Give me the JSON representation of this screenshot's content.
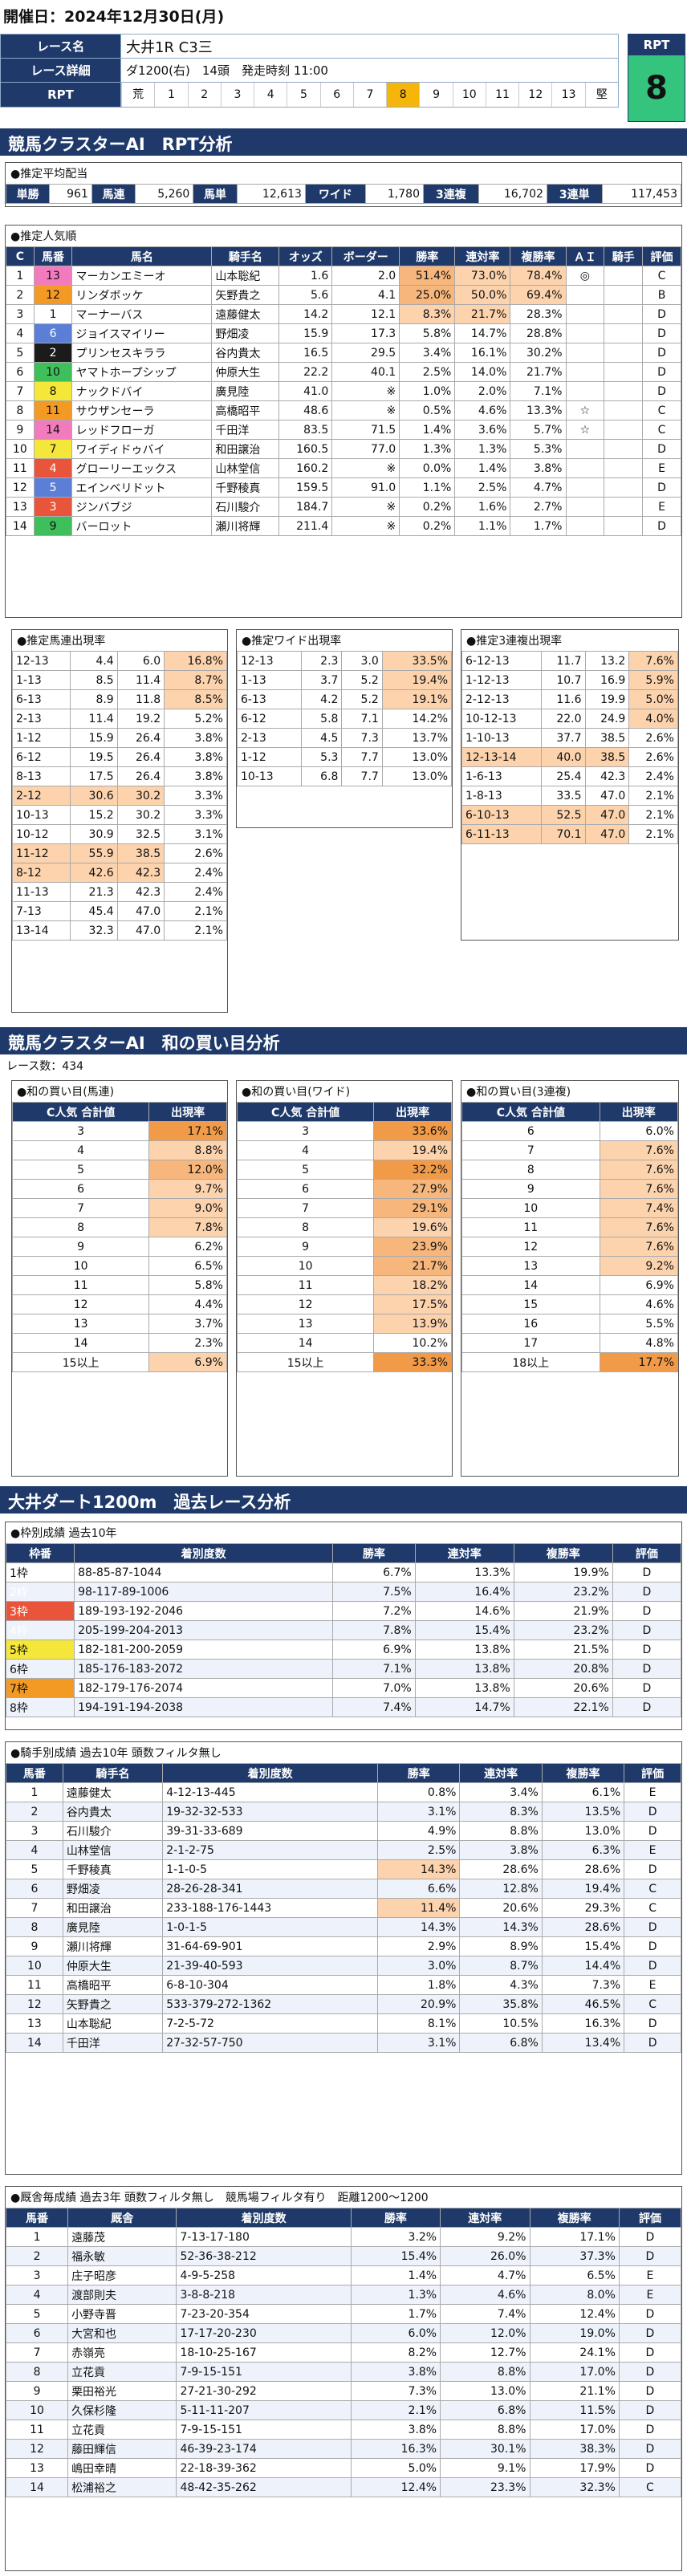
{
  "date": "開催日：2024年12月30日(月)",
  "header": {
    "race_name_label": "レース名",
    "race_name": "大井1R C3三",
    "race_detail_label": "レース詳細",
    "race_detail": "ダ1200(右)　14頭　発走時刻 11:00",
    "rpt_label": "RPT",
    "rpt_scale": [
      "荒",
      "1",
      "2",
      "3",
      "4",
      "5",
      "6",
      "7",
      "8",
      "9",
      "10",
      "11",
      "12",
      "13",
      "堅"
    ],
    "rpt_title": "RPT",
    "rpt_value": "8"
  },
  "band1": "競馬クラスターAI　RPT分析",
  "payout_title": "●推定平均配当",
  "payout": [
    [
      "単勝",
      "961"
    ],
    [
      "馬連",
      "5,260"
    ],
    [
      "馬単",
      "12,613"
    ],
    [
      "ワイド",
      "1,780"
    ],
    [
      "3連複",
      "16,702"
    ],
    [
      "3連単",
      "117,453"
    ]
  ],
  "pop_title": "●推定人気順",
  "pop_headers": [
    "C",
    "馬番",
    "馬名",
    "騎手名",
    "オッズ",
    "ボーダー",
    "勝率",
    "連対率",
    "複勝率",
    "ＡＩ",
    "騎手",
    "評価"
  ],
  "pop_rows": [
    [
      "1",
      "13",
      "マーカンエミーオ",
      "山本聡紀",
      "1.6",
      "2.0",
      "51.4%",
      "73.0%",
      "78.4%",
      "◎",
      "",
      "C"
    ],
    [
      "2",
      "12",
      "リンダボッケ",
      "矢野貴之",
      "5.6",
      "4.1",
      "25.0%",
      "50.0%",
      "69.4%",
      "",
      "",
      "B"
    ],
    [
      "3",
      "1",
      "マーナーバス",
      "遠藤健太",
      "14.2",
      "12.1",
      "8.3%",
      "21.7%",
      "28.3%",
      "",
      "",
      "D"
    ],
    [
      "4",
      "6",
      "ジョイスマイリー",
      "野畑凌",
      "15.9",
      "17.3",
      "5.8%",
      "14.7%",
      "28.8%",
      "",
      "",
      "D"
    ],
    [
      "5",
      "2",
      "プリンセスキララ",
      "谷内貴太",
      "16.5",
      "29.5",
      "3.4%",
      "16.1%",
      "30.2%",
      "",
      "",
      "D"
    ],
    [
      "6",
      "10",
      "ヤマトホープシップ",
      "仲原大生",
      "22.2",
      "40.1",
      "2.5%",
      "14.0%",
      "21.7%",
      "",
      "",
      "D"
    ],
    [
      "7",
      "8",
      "ナックドバイ",
      "廣見陸",
      "41.0",
      "※",
      "1.0%",
      "2.0%",
      "7.1%",
      "",
      "",
      "D"
    ],
    [
      "8",
      "11",
      "サウザンセーラ",
      "高橋昭平",
      "48.6",
      "※",
      "0.5%",
      "4.6%",
      "13.3%",
      "☆",
      "",
      "C"
    ],
    [
      "9",
      "14",
      "レッドフローガ",
      "千田洋",
      "83.5",
      "71.5",
      "1.4%",
      "3.6%",
      "5.7%",
      "☆",
      "",
      "C"
    ],
    [
      "10",
      "7",
      "ワイディドゥバイ",
      "和田譲治",
      "160.5",
      "77.0",
      "1.3%",
      "1.3%",
      "5.3%",
      "",
      "",
      "D"
    ],
    [
      "11",
      "4",
      "グローリーエックス",
      "山林堂信",
      "160.2",
      "※",
      "0.0%",
      "1.4%",
      "3.8%",
      "",
      "",
      "E"
    ],
    [
      "12",
      "5",
      "エインベリドット",
      "千野稜真",
      "159.5",
      "91.0",
      "1.1%",
      "2.5%",
      "4.7%",
      "",
      "",
      "D"
    ],
    [
      "13",
      "3",
      "ジンバブジ",
      "石川駿介",
      "184.7",
      "※",
      "0.2%",
      "1.6%",
      "2.7%",
      "",
      "",
      "E"
    ],
    [
      "14",
      "9",
      "バーロット",
      "瀬川将輝",
      "211.4",
      "※",
      "0.2%",
      "1.1%",
      "1.7%",
      "",
      "",
      "D"
    ]
  ],
  "umaren_title": "●推定馬連出現率",
  "umaren": [
    [
      "12-13",
      "4.4",
      "6.0",
      "16.8%"
    ],
    [
      "1-13",
      "8.5",
      "11.4",
      "8.7%"
    ],
    [
      "6-13",
      "8.9",
      "11.8",
      "8.5%"
    ],
    [
      "2-13",
      "11.4",
      "19.2",
      "5.2%"
    ],
    [
      "1-12",
      "15.9",
      "26.4",
      "3.8%"
    ],
    [
      "6-12",
      "19.5",
      "26.4",
      "3.8%"
    ],
    [
      "8-13",
      "17.5",
      "26.4",
      "3.8%"
    ],
    [
      "2-12",
      "30.6",
      "30.2",
      "3.3%"
    ],
    [
      "10-13",
      "15.2",
      "30.2",
      "3.3%"
    ],
    [
      "10-12",
      "30.9",
      "32.5",
      "3.1%"
    ],
    [
      "11-12",
      "55.9",
      "38.5",
      "2.6%"
    ],
    [
      "8-12",
      "42.6",
      "42.3",
      "2.4%"
    ],
    [
      "11-13",
      "21.3",
      "42.3",
      "2.4%"
    ],
    [
      "7-13",
      "45.4",
      "47.0",
      "2.1%"
    ],
    [
      "13-14",
      "32.3",
      "47.0",
      "2.1%"
    ]
  ],
  "wide_title": "●推定ワイド出現率",
  "wide": [
    [
      "12-13",
      "2.3",
      "3.0",
      "33.5%"
    ],
    [
      "1-13",
      "3.7",
      "5.2",
      "19.4%"
    ],
    [
      "6-13",
      "4.2",
      "5.2",
      "19.1%"
    ],
    [
      "6-12",
      "5.8",
      "7.1",
      "14.2%"
    ],
    [
      "2-13",
      "4.5",
      "7.3",
      "13.7%"
    ],
    [
      "1-12",
      "5.3",
      "7.7",
      "13.0%"
    ],
    [
      "10-13",
      "6.8",
      "7.7",
      "13.0%"
    ]
  ],
  "sanren_title": "●推定3連複出現率",
  "sanren": [
    [
      "6-12-13",
      "11.7",
      "13.2",
      "7.6%"
    ],
    [
      "1-12-13",
      "10.7",
      "16.9",
      "5.9%"
    ],
    [
      "2-12-13",
      "11.6",
      "19.9",
      "5.0%"
    ],
    [
      "10-12-13",
      "22.0",
      "24.9",
      "4.0%"
    ],
    [
      "1-10-13",
      "37.7",
      "38.5",
      "2.6%"
    ],
    [
      "12-13-14",
      "40.0",
      "38.5",
      "2.6%"
    ],
    [
      "1-6-13",
      "25.4",
      "42.3",
      "2.4%"
    ],
    [
      "1-8-13",
      "33.5",
      "47.0",
      "2.1%"
    ],
    [
      "6-10-13",
      "52.5",
      "47.0",
      "2.1%"
    ],
    [
      "6-11-13",
      "70.1",
      "47.0",
      "2.1%"
    ]
  ],
  "band2": "競馬クラスターAI　和の買い目分析",
  "race_count": "レース数：434",
  "sum_titles": [
    "●和の買い目(馬連)",
    "●和の買い目(ワイド)",
    "●和の買い目(3連複)"
  ],
  "sum_headers": [
    [
      "C人気",
      "合計値",
      "出現率"
    ]
  ],
  "sum_umaren": [
    [
      "3",
      "17.1%"
    ],
    [
      "4",
      "8.8%"
    ],
    [
      "5",
      "12.0%"
    ],
    [
      "6",
      "9.7%"
    ],
    [
      "7",
      "9.0%"
    ],
    [
      "8",
      "7.8%"
    ],
    [
      "9",
      "6.2%"
    ],
    [
      "10",
      "6.5%"
    ],
    [
      "11",
      "5.8%"
    ],
    [
      "12",
      "4.4%"
    ],
    [
      "13",
      "3.7%"
    ],
    [
      "14",
      "2.3%"
    ],
    [
      "15以上",
      "6.9%"
    ]
  ],
  "sum_wide": [
    [
      "3",
      "33.6%"
    ],
    [
      "4",
      "19.4%"
    ],
    [
      "5",
      "32.2%"
    ],
    [
      "6",
      "27.9%"
    ],
    [
      "7",
      "29.1%"
    ],
    [
      "8",
      "19.6%"
    ],
    [
      "9",
      "23.9%"
    ],
    [
      "10",
      "21.7%"
    ],
    [
      "11",
      "18.2%"
    ],
    [
      "12",
      "17.5%"
    ],
    [
      "13",
      "13.9%"
    ],
    [
      "14",
      "10.2%"
    ],
    [
      "15以上",
      "33.3%"
    ]
  ],
  "sum_sanren": [
    [
      "6",
      "6.0%"
    ],
    [
      "7",
      "7.6%"
    ],
    [
      "8",
      "7.6%"
    ],
    [
      "9",
      "7.6%"
    ],
    [
      "10",
      "7.4%"
    ],
    [
      "11",
      "7.6%"
    ],
    [
      "12",
      "7.6%"
    ],
    [
      "13",
      "9.2%"
    ],
    [
      "14",
      "6.9%"
    ],
    [
      "15",
      "4.6%"
    ],
    [
      "16",
      "5.5%"
    ],
    [
      "17",
      "4.8%"
    ],
    [
      "18以上",
      "17.7%"
    ]
  ],
  "band3": "大井ダート1200m　過去レース分析",
  "waku_title": "●枠別成績 過去10年",
  "waku_headers": [
    "枠番",
    "着別度数",
    "勝率",
    "連対率",
    "複勝率",
    "評価"
  ],
  "waku": [
    [
      "1枠",
      "88-85-87-1044",
      "6.7%",
      "13.3%",
      "19.9%",
      "D"
    ],
    [
      "2枠",
      "98-117-89-1006",
      "7.5%",
      "16.4%",
      "23.2%",
      "D"
    ],
    [
      "3枠",
      "189-193-192-2046",
      "7.2%",
      "14.6%",
      "21.9%",
      "D"
    ],
    [
      "4枠",
      "205-199-204-2013",
      "7.8%",
      "15.4%",
      "23.2%",
      "D"
    ],
    [
      "5枠",
      "182-181-200-2059",
      "6.9%",
      "13.8%",
      "21.5%",
      "D"
    ],
    [
      "6枠",
      "185-176-183-2072",
      "7.1%",
      "13.8%",
      "20.8%",
      "D"
    ],
    [
      "7枠",
      "182-179-176-2074",
      "7.0%",
      "13.8%",
      "20.6%",
      "D"
    ],
    [
      "8枠",
      "194-191-194-2038",
      "7.4%",
      "14.7%",
      "22.1%",
      "D"
    ]
  ],
  "jockey_title": "●騎手別成績 過去10年 頭数フィルタ無し",
  "jockey_headers": [
    "馬番",
    "騎手名",
    "着別度数",
    "勝率",
    "連対率",
    "複勝率",
    "評価"
  ],
  "jockey": [
    [
      "1",
      "遠藤健太",
      "4-12-13-445",
      "0.8%",
      "3.4%",
      "6.1%",
      "E"
    ],
    [
      "2",
      "谷内貴太",
      "19-32-32-533",
      "3.1%",
      "8.3%",
      "13.5%",
      "D"
    ],
    [
      "3",
      "石川駿介",
      "39-31-33-689",
      "4.9%",
      "8.8%",
      "13.0%",
      "D"
    ],
    [
      "4",
      "山林堂信",
      "2-1-2-75",
      "2.5%",
      "3.8%",
      "6.3%",
      "E"
    ],
    [
      "5",
      "千野稜真",
      "1-1-0-5",
      "14.3%",
      "28.6%",
      "28.6%",
      "D"
    ],
    [
      "6",
      "野畑凌",
      "28-26-28-341",
      "6.6%",
      "12.8%",
      "19.4%",
      "C"
    ],
    [
      "7",
      "和田譲治",
      "233-188-176-1443",
      "11.4%",
      "20.6%",
      "29.3%",
      "C"
    ],
    [
      "8",
      "廣見陸",
      "1-0-1-5",
      "14.3%",
      "14.3%",
      "28.6%",
      "D"
    ],
    [
      "9",
      "瀬川将輝",
      "31-64-69-901",
      "2.9%",
      "8.9%",
      "15.4%",
      "D"
    ],
    [
      "10",
      "仲原大生",
      "21-39-40-593",
      "3.0%",
      "8.7%",
      "14.4%",
      "D"
    ],
    [
      "11",
      "高橋昭平",
      "6-8-10-304",
      "1.8%",
      "4.3%",
      "7.3%",
      "E"
    ],
    [
      "12",
      "矢野貴之",
      "533-379-272-1362",
      "20.9%",
      "35.8%",
      "46.5%",
      "C"
    ],
    [
      "13",
      "山本聡紀",
      "7-2-5-72",
      "8.1%",
      "10.5%",
      "16.3%",
      "D"
    ],
    [
      "14",
      "千田洋",
      "27-32-57-750",
      "3.1%",
      "6.8%",
      "13.4%",
      "D"
    ]
  ],
  "trainer_title": "●厩舎毎成績 過去3年 頭数フィルタ無し　競馬場フィルタ有り　距離1200～1200",
  "trainer_headers": [
    "馬番",
    "厩舎",
    "着別度数",
    "勝率",
    "連対率",
    "複勝率",
    "評価"
  ],
  "trainer": [
    [
      "1",
      "遠藤茂",
      "7-13-17-180",
      "3.2%",
      "9.2%",
      "17.1%",
      "D"
    ],
    [
      "2",
      "福永敏",
      "52-36-38-212",
      "15.4%",
      "26.0%",
      "37.3%",
      "D"
    ],
    [
      "3",
      "庄子昭彦",
      "4-9-5-258",
      "1.4%",
      "4.7%",
      "6.5%",
      "E"
    ],
    [
      "4",
      "渡部則夫",
      "3-8-8-218",
      "1.3%",
      "4.6%",
      "8.0%",
      "E"
    ],
    [
      "5",
      "小野寺晋",
      "7-23-20-354",
      "1.7%",
      "7.4%",
      "12.4%",
      "D"
    ],
    [
      "6",
      "大宮和也",
      "17-17-20-230",
      "6.0%",
      "12.0%",
      "19.0%",
      "D"
    ],
    [
      "7",
      "赤嶺亮",
      "18-10-25-167",
      "8.2%",
      "12.7%",
      "24.1%",
      "D"
    ],
    [
      "8",
      "立花貢",
      "7-9-15-151",
      "3.8%",
      "8.8%",
      "17.0%",
      "D"
    ],
    [
      "9",
      "栗田裕光",
      "27-21-30-292",
      "7.3%",
      "13.0%",
      "21.1%",
      "D"
    ],
    [
      "10",
      "久保杉隆",
      "5-11-11-207",
      "2.1%",
      "6.8%",
      "11.5%",
      "D"
    ],
    [
      "11",
      "立花貢",
      "7-9-15-151",
      "3.8%",
      "8.8%",
      "17.0%",
      "D"
    ],
    [
      "12",
      "藤田輝信",
      "46-39-23-174",
      "16.3%",
      "30.1%",
      "38.3%",
      "D"
    ],
    [
      "13",
      "嶋田幸晴",
      "22-18-39-362",
      "5.0%",
      "9.1%",
      "17.9%",
      "D"
    ],
    [
      "14",
      "松浦裕之",
      "48-42-35-262",
      "12.4%",
      "23.3%",
      "32.3%",
      "C"
    ]
  ]
}
